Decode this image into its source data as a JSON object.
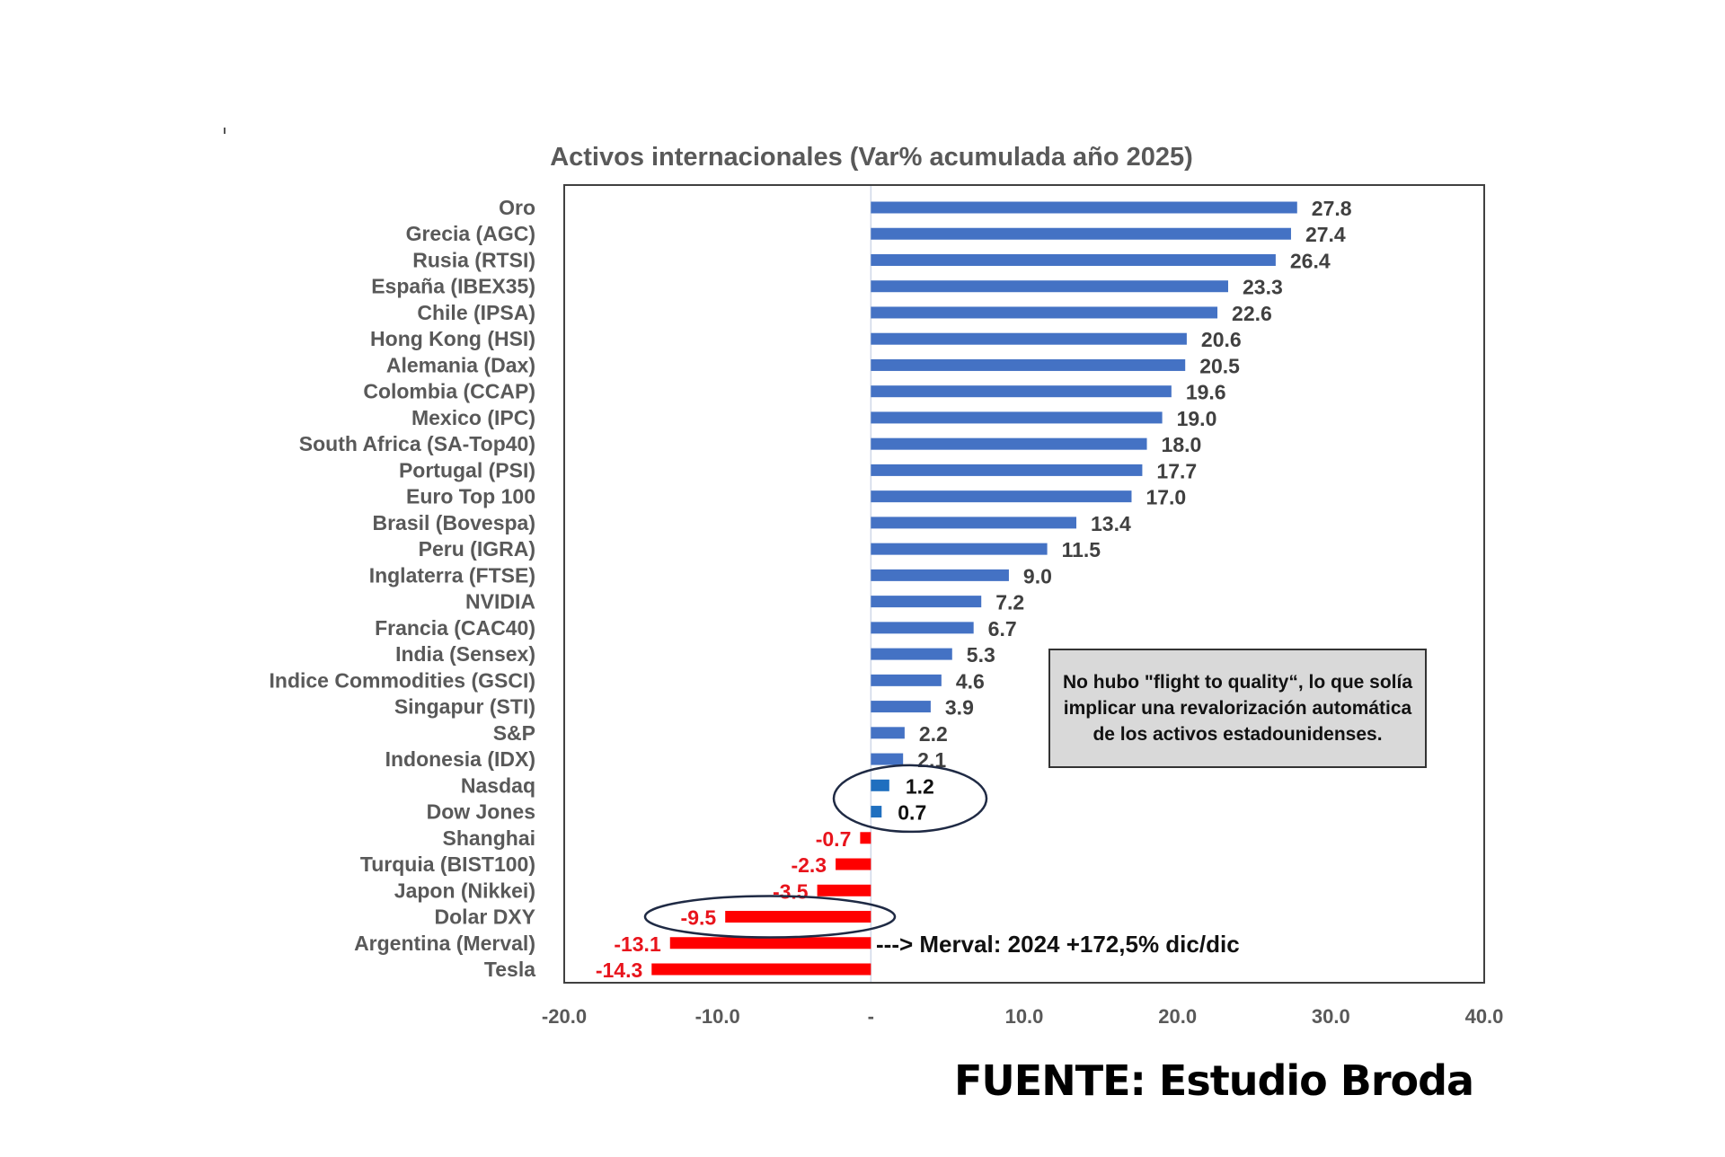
{
  "chart_data": {
    "type": "bar",
    "orientation": "horizontal",
    "title": "Activos internacionales (Var% acumulada año 2025)",
    "xlabel": "",
    "ylabel": "",
    "xlim": [
      -20,
      40
    ],
    "x_ticks": [
      -20,
      -10,
      0,
      10,
      20,
      30,
      40
    ],
    "x_tick_labels": [
      "-20.0",
      "-10.0",
      "-",
      "10.0",
      "20.0",
      "30.0",
      "40.0"
    ],
    "grid": false,
    "legend": "none",
    "categories": [
      "Oro",
      "Grecia (AGC)",
      "Rusia (RTSI)",
      "España (IBEX35)",
      "Chile (IPSA)",
      "Hong Kong (HSI)",
      "Alemania (Dax)",
      "Colombia (CCAP)",
      "Mexico (IPC)",
      "South Africa (SA-Top40)",
      "Portugal (PSI)",
      "Euro Top 100",
      "Brasil (Bovespa)",
      "Peru (IGRA)",
      "Inglaterra (FTSE)",
      "NVIDIA",
      "Francia (CAC40)",
      "India (Sensex)",
      "Indice Commodities (GSCI)",
      "Singapur (STI)",
      "S&P",
      "Indonesia (IDX)",
      "Nasdaq",
      "Dow Jones",
      "Shanghai",
      "Turquia (BIST100)",
      "Japon (Nikkei)",
      "Dolar DXY",
      "Argentina (Merval)",
      "Tesla"
    ],
    "values": [
      27.8,
      27.4,
      26.4,
      23.3,
      22.6,
      20.6,
      20.5,
      19.6,
      19.0,
      18.0,
      17.7,
      17.0,
      13.4,
      11.5,
      9.0,
      7.2,
      6.7,
      5.3,
      4.6,
      3.9,
      2.2,
      2.1,
      1.2,
      0.7,
      -0.7,
      -2.3,
      -3.5,
      -9.5,
      -13.1,
      -14.3
    ],
    "value_labels": [
      "27.8",
      "27.4",
      "26.4",
      "23.3",
      "22.6",
      "20.6",
      "20.5",
      "19.6",
      "19.0",
      "18.0",
      "17.7",
      "17.0",
      "13.4",
      "11.5",
      "9.0",
      "7.2",
      "6.7",
      "5.3",
      "4.6",
      "3.9",
      "2.2",
      "2.1",
      "1.2",
      "0.7",
      "-0.7",
      "-2.3",
      "-3.5",
      "-9.5",
      "-13.1",
      "-14.3"
    ],
    "highlighted": [
      "Nasdaq",
      "Dow Jones",
      "Dolar DXY"
    ],
    "annotations": [
      "No hubo \"flight to quality“, lo que solía implicar una revalorización automática de los activos estadounidenses.",
      "---> Merval: 2024 +172,5% dic/dic"
    ],
    "colors": {
      "positive": "#4472c4",
      "highlight_positive": "#1f6fbf",
      "negative": "#ff0000",
      "negative_label": "#e8141c",
      "ellipse": "#1f2a44"
    }
  },
  "note": {
    "text": "No hubo \"flight to quality“, lo que solía implicar una revalorización automática de los activos estadounidenses."
  },
  "merval_note": {
    "text": "---> Merval: 2024 +172,5% dic/dic"
  },
  "source": {
    "text": "FUENTE: Estudio Broda"
  }
}
